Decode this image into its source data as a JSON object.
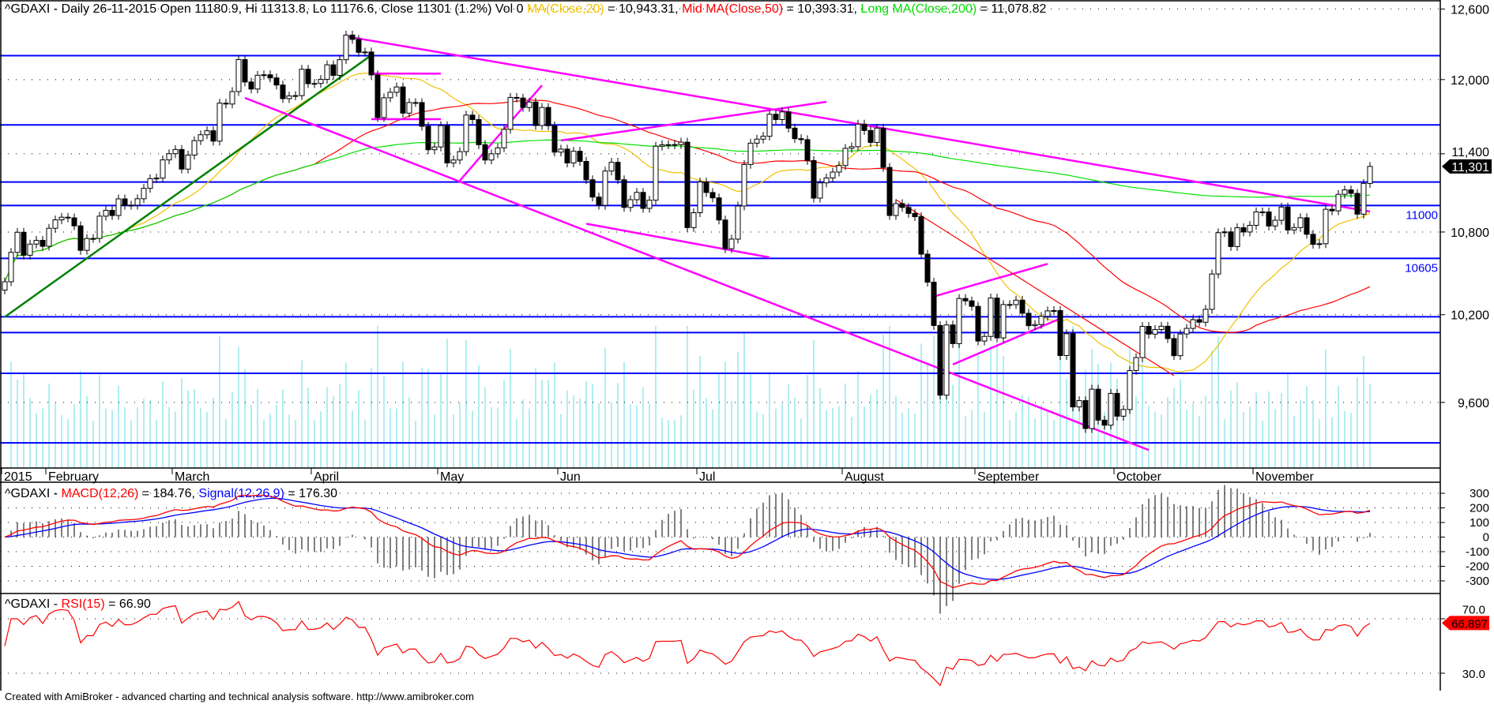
{
  "header": {
    "price_prefix": "^GDAXI - Daily 26-11-2015 Open 11180.9, Hi 11313.8, Lo 11176.6, Close 11301 (1.2%) Vol 0 ",
    "ma20_label": "MA(Close,20)",
    "ma20_value": " = 10,943.31, ",
    "ma50_label": "Mid MA(Close,50)",
    "ma50_value": " = 10,393.31, ",
    "ma200_label": "Long MA(Close,200)",
    "ma200_value": " = 11,078.82",
    "macd_prefix": "^GDAXI - ",
    "macd_label": "MACD(12,26)",
    "macd_value": " = 184.76, ",
    "signal_label": "Signal(12,26,9)",
    "signal_value": " = 176.30",
    "rsi_prefix": "^GDAXI - ",
    "rsi_label": "RSI(15)",
    "rsi_value": " = 66.90"
  },
  "footer": "Created with AmiBroker - advanced charting and technical analysis software. http://www.amibroker.com",
  "colors": {
    "ma20": "#f0c000",
    "ma50": "#ff0000",
    "ma200": "#00e000",
    "level": "#0000ff",
    "trend": "#ff00ff",
    "green_trend": "#008000",
    "volume": "#b0eef0",
    "macd": "#ff0000",
    "signal": "#0000ff",
    "rsi": "#ff0000"
  },
  "chart_data": [
    {
      "type": "candlestick",
      "scale": "log",
      "ylim": [
        9250,
        12650
      ],
      "grid": "dotted horizontal",
      "yticks": [
        {
          "v": 12600,
          "label": "12,600"
        },
        {
          "v": 12000,
          "label": "12,000"
        },
        {
          "v": 11400,
          "label": "11,400"
        },
        {
          "v": 10800,
          "label": "10,800"
        },
        {
          "v": 10200,
          "label": "10,200"
        },
        {
          "v": 9600,
          "label": "9,600"
        }
      ],
      "last_price_marker": {
        "v": 11301,
        "label": "11,301"
      },
      "months": [
        {
          "label": "2015",
          "month": "2015-01",
          "days": [
            22,
            23,
            26,
            27,
            28,
            29,
            30
          ],
          "closes": [
            10435,
            10649,
            10798,
            10628,
            10710,
            10738,
            10694
          ]
        },
        {
          "label": "February",
          "month": "2015-02",
          "days": [
            2,
            3,
            4,
            5,
            6,
            9,
            10,
            11,
            12,
            13,
            16,
            17,
            18,
            19,
            20,
            23,
            24,
            25,
            26,
            27
          ],
          "closes": [
            10828,
            10891,
            10911,
            10906,
            10846,
            10664,
            10752,
            10752,
            10919,
            10963,
            10924,
            11050,
            11001,
            11002,
            11051,
            11131,
            11206,
            11210,
            11352,
            11401
          ]
        },
        {
          "label": "March",
          "month": "2015-03",
          "days": [
            2,
            3,
            4,
            5,
            6,
            9,
            10,
            11,
            12,
            13,
            16,
            17,
            18,
            19,
            20,
            23,
            24,
            25,
            26,
            27,
            30,
            31
          ],
          "closes": [
            11434,
            11280,
            11390,
            11504,
            11551,
            11583,
            11500,
            11806,
            11799,
            11901,
            12167,
            11980,
            11922,
            12036,
            12040,
            12014,
            11955,
            11843,
            11865,
            11868,
            12086,
            11966
          ]
        },
        {
          "label": "April",
          "month": "2015-04",
          "days": [
            1,
            2,
            7,
            8,
            9,
            10,
            13,
            14,
            15,
            16,
            17,
            20,
            21,
            22,
            23,
            24,
            27,
            28,
            29,
            30
          ],
          "closes": [
            11968,
            12002,
            12123,
            12035,
            12166,
            12375,
            12338,
            12228,
            12231,
            12039,
            11689,
            11850,
            11895,
            11939,
            11725,
            11811,
            11811,
            11619,
            11432,
            11454
          ]
        },
        {
          "label": "May",
          "month": "2015-05",
          "days": [
            4,
            5,
            6,
            7,
            8,
            11,
            12,
            13,
            14,
            15,
            18,
            19,
            20,
            21,
            22,
            26,
            27,
            28,
            29
          ],
          "closes": [
            11624,
            11328,
            11351,
            11417,
            11709,
            11673,
            11472,
            11351,
            11400,
            11447,
            11594,
            11853,
            11848,
            11771,
            11815,
            11625,
            11771,
            11623,
            11413
          ]
        },
        {
          "label": "Jun",
          "month": "2015-06",
          "days": [
            1,
            2,
            3,
            4,
            5,
            8,
            9,
            10,
            11,
            12,
            15,
            16,
            17,
            18,
            19,
            22,
            23,
            24,
            25,
            26,
            29,
            30
          ],
          "closes": [
            11437,
            11328,
            11420,
            11340,
            11197,
            11064,
            11001,
            11265,
            11333,
            11197,
            10985,
            11044,
            11100,
            10978,
            11040,
            11460,
            11471,
            11472,
            11473,
            11492,
            10833,
            10945
          ]
        },
        {
          "label": "Jul",
          "month": "2015-07",
          "days": [
            1,
            2,
            3,
            6,
            7,
            8,
            9,
            10,
            13,
            14,
            15,
            16,
            17,
            20,
            21,
            22,
            23,
            24,
            27,
            28,
            29,
            30,
            31
          ],
          "closes": [
            11180,
            11099,
            11058,
            10890,
            10676,
            10747,
            10996,
            11316,
            11484,
            11516,
            11539,
            11716,
            11673,
            11735,
            11604,
            11520,
            11512,
            11347,
            11056,
            11173,
            11211,
            11257,
            11308
          ]
        },
        {
          "label": "August",
          "month": "2015-08",
          "days": [
            3,
            4,
            5,
            6,
            7,
            10,
            11,
            12,
            13,
            14,
            17,
            18,
            19,
            20,
            21,
            24,
            25,
            26,
            27,
            28,
            31
          ],
          "closes": [
            11443,
            11456,
            11636,
            11585,
            11490,
            11604,
            11293,
            10924,
            11014,
            10985,
            10940,
            10915,
            10636,
            10432,
            10124,
            9648,
            10128,
            9998,
            10315,
            10298,
            10259
          ]
        },
        {
          "label": "September",
          "month": "2015-09",
          "days": [
            1,
            2,
            3,
            4,
            7,
            8,
            9,
            10,
            11,
            14,
            15,
            16,
            17,
            18,
            21,
            22,
            23,
            24,
            25,
            28,
            29,
            30
          ],
          "closes": [
            10016,
            10048,
            10318,
            10038,
            10272,
            10271,
            10303,
            10210,
            10123,
            10131,
            10188,
            10227,
            10229,
            9916,
            10067,
            9570,
            9612,
            9428,
            9688,
            9483,
            9450,
            9660
          ]
        },
        {
          "label": "October",
          "month": "2015-10",
          "days": [
            1,
            2,
            5,
            6,
            7,
            8,
            9,
            12,
            13,
            14,
            15,
            16,
            19,
            20,
            21,
            22,
            23,
            26,
            27,
            28,
            29,
            30
          ],
          "closes": [
            9509,
            9553,
            9814,
            9902,
            10118,
            10064,
            10096,
            10119,
            10033,
            9915,
            10065,
            10104,
            10165,
            10147,
            10238,
            10491,
            10795,
            10801,
            10692,
            10832,
            10800,
            10850
          ]
        },
        {
          "label": "November",
          "month": "2015-11",
          "days": [
            2,
            3,
            4,
            5,
            6,
            9,
            10,
            11,
            12,
            13,
            16,
            17,
            18,
            19,
            20,
            23,
            24,
            25,
            26
          ],
          "closes": [
            10951,
            10951,
            10845,
            10888,
            10988,
            10815,
            10833,
            10907,
            10783,
            10708,
            10713,
            10971,
            10959,
            11085,
            11119,
            11092,
            10934,
            11169,
            11301
          ]
        }
      ],
      "levels": [
        {
          "v": 12200
        },
        {
          "v": 11630
        },
        {
          "v": 11180
        },
        {
          "v": 11000,
          "label": "11000"
        },
        {
          "v": 10605,
          "label": "10605"
        },
        {
          "v": 10185
        },
        {
          "v": 10075
        },
        {
          "v": 9795
        },
        {
          "v": 9335
        }
      ],
      "trendlines": [
        {
          "color": "green_trend",
          "from": [
            "2015-01-22",
            10184
          ],
          "to": [
            "2015-04-16",
            12204
          ]
        },
        {
          "color": "trend",
          "from": [
            "2015-04-10",
            12364
          ],
          "to": [
            "2015-11-26",
            10954
          ]
        },
        {
          "color": "trend",
          "from": [
            "2015-03-17",
            11849
          ],
          "to": [
            "2015-10-08",
            9289
          ]
        },
        {
          "color": "trend",
          "from": [
            "2015-04-16",
            12050
          ],
          "to": [
            "2015-05-04",
            12050
          ]
        },
        {
          "color": "trend",
          "from": [
            "2015-04-16",
            11676
          ],
          "to": [
            "2015-05-04",
            11676
          ]
        },
        {
          "color": "trend",
          "from": [
            "2015-05-07",
            11190
          ],
          "to": [
            "2015-05-27",
            11953
          ]
        },
        {
          "color": "trend",
          "from": [
            "2015-06-01",
            11505
          ],
          "to": [
            "2015-07-29",
            11817
          ]
        },
        {
          "color": "trend",
          "from": [
            "2015-06-05",
            10862
          ],
          "to": [
            "2015-07-16",
            10612
          ]
        },
        {
          "color": "trend",
          "from": [
            "2015-08-21",
            10329
          ],
          "to": [
            "2015-09-16",
            10565
          ]
        },
        {
          "color": "trend",
          "from": [
            "2015-08-26",
            9855
          ],
          "to": [
            "2015-09-18",
            10173
          ]
        },
        {
          "color": "ma50",
          "from": [
            "2015-08-13",
            11044
          ],
          "to": [
            "2015-10-14",
            9779
          ]
        }
      ]
    },
    {
      "type": "line",
      "name": "MACD",
      "ylim": [
        -380,
        380
      ],
      "yticks": [
        300,
        200,
        100,
        0,
        -100,
        -200,
        -300
      ],
      "series": [
        {
          "name": "MACD(12,26)"
        },
        {
          "name": "Signal(12,26,9)"
        }
      ]
    },
    {
      "type": "line",
      "name": "RSI",
      "yticks": [
        {
          "v": 70,
          "label": "70.0"
        },
        {
          "v": 30,
          "label": "30.0"
        }
      ],
      "last_value_marker": {
        "v": 66.897,
        "label": "66.897"
      }
    }
  ]
}
